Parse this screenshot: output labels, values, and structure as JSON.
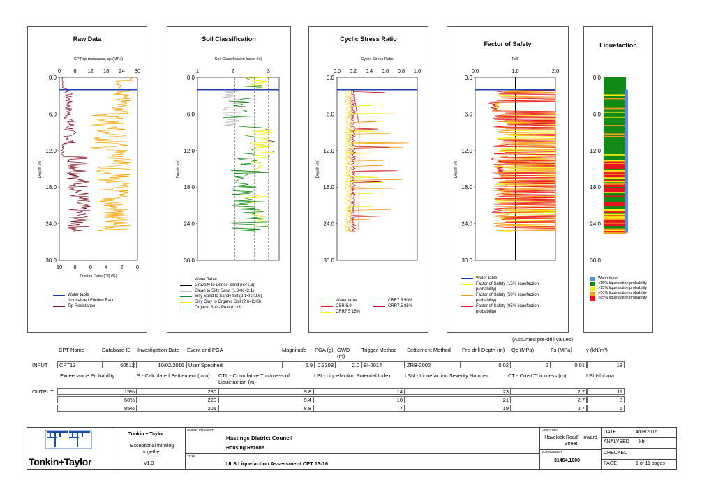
{
  "colors": {
    "water_table": "#1f3fb8",
    "tip": "#7a1020",
    "friction": "#f5a300",
    "red": "#e8141e",
    "yellow": "#f5ee10",
    "orange": "#f59a1a",
    "green": "#138a17",
    "gray": "#bbbbbb"
  },
  "panels": {
    "raw": {
      "title": "Raw Data",
      "top_axis_label": "CPT tip resistance, qc (MPa)",
      "bottom_axis_label": "Friction Ratio (Rf) (%)",
      "top_ticks": [
        "0",
        "6",
        "12",
        "18",
        "24",
        "30"
      ],
      "bottom_ticks": [
        "10",
        "8",
        "6",
        "4",
        "2",
        "0"
      ],
      "legend": [
        "Water table",
        "Normalized Friction Ratio",
        "Tip Resistance"
      ]
    },
    "soil": {
      "title": "Soil Classification",
      "top_axis_label": "Soil Classification Index (Ic)",
      "top_ticks": [
        "1",
        "2",
        "3"
      ],
      "legend": [
        "Water Table",
        "Gravelly to Dense Sand (Ic<1.3)",
        "Clean to Silty Sand (1.3<Ic<2.1)",
        "Silty Sand to Sandy Silt (2.1<Ic<2.6)",
        "Silty Clay to Organic Soil (2.6<Ic<3)",
        "Organic Soil - Peat (Ic>3)"
      ]
    },
    "csr": {
      "title": "Cyclic Stress Ratio",
      "top_axis_label": "Cyclic Stress Ratio",
      "top_ticks": [
        "0.0",
        "0.2",
        "0.4",
        "0.6",
        "0.8",
        "1.0"
      ],
      "legend_left": [
        "Water table",
        "CSR 6.9",
        "CRR7.5 15%"
      ],
      "legend_right": [
        "CRR7.5 50%",
        "CRR7.5 85%"
      ]
    },
    "fos": {
      "title": "Factor of Safety",
      "top_axis_label": "FoS",
      "top_ticks": [
        "0.0",
        "1.0",
        "2.0"
      ],
      "legend": [
        "Water table",
        "Factor of Safety (15% liquefaction probability)",
        "Factor of Safety (50% liquefaction probability)",
        "Factor of Safety (85% liquefaction probability)"
      ]
    },
    "liq": {
      "title": "Liquefaction",
      "legend": [
        "Water table",
        "<15% liquefaction probability",
        ">15% liquefaction probability",
        ">50% liquefaction probability",
        ">85% liquefaction probability"
      ]
    }
  },
  "depth_ticks": [
    "0.0",
    "6.0",
    "12.0",
    "18.0",
    "24.0",
    "30.0"
  ],
  "depth_label": "Depth (m)",
  "chart_data": [
    {
      "type": "line",
      "title": "Raw Data",
      "ylabel": "Depth (m)",
      "ylim": [
        0,
        30
      ],
      "series": [
        {
          "name": "Water table",
          "depth": [
            2
          ]
        },
        {
          "name": "Tip Resistance",
          "xlabel": "CPT tip resistance, qc (MPa)",
          "xlim": [
            0,
            30
          ]
        },
        {
          "name": "Normalized Friction Ratio",
          "xlabel": "Friction Ratio (Rf) (%)",
          "xlim": [
            10,
            0
          ]
        }
      ]
    },
    {
      "type": "line",
      "title": "Soil Classification",
      "xlabel": "Soil Classification Index (Ic)",
      "xlim": [
        1,
        3.3
      ],
      "ylim": [
        0,
        30
      ],
      "water_table_depth": 2
    },
    {
      "type": "line",
      "title": "Cyclic Stress Ratio",
      "xlabel": "Cyclic Stress Ratio",
      "xlim": [
        0,
        1
      ],
      "ylim": [
        0,
        30
      ],
      "water_table_depth": 2
    },
    {
      "type": "line",
      "title": "Factor of Safety",
      "xlabel": "FoS",
      "xlim": [
        0,
        2
      ],
      "ylim": [
        0,
        30
      ],
      "water_table_depth": 2
    },
    {
      "type": "heatmap",
      "title": "Liquefaction",
      "ylim": [
        0,
        30
      ],
      "water_table_depth": 2
    }
  ],
  "assumed_label": "(Assumed pre-drill values)",
  "input_headers": [
    "CPT Name",
    "Database ID",
    "Investigation Date",
    "Event and PGA",
    "Magnitude",
    "PGA (g)",
    "GWD (m)",
    "Trigger Method",
    "Settlement Method",
    "Pre-drill Depth (m)",
    "Qc (MPa)",
    "Fs (MPa)",
    "γ (kN/m³)"
  ],
  "input_row": {
    "label": "INPUT",
    "cpt": "CPT13",
    "db": "60512",
    "date": "10/02/2016",
    "event": "User Specified",
    "mag": "6.9",
    "pga": "0.3308",
    "gwd": "2.0",
    "trigger": "BI-2014",
    "settle": "ZRB-2002",
    "depth": "0.02",
    "qc": "2",
    "fs": "0.01",
    "gamma": "18"
  },
  "output_headers": [
    "Exceedance Probability",
    "S - Calculated Settlement (mm)",
    "CTL - Cumulative Thickness of Liquefaction (m)",
    "LPI - Liquefaction Potential Index",
    "LSN - Liquefaction Severity Number",
    "CT - Crust Thickness (m)",
    "LPI Ishihara"
  ],
  "output_label": "OUTPUT",
  "output_rows": [
    [
      "15%",
      "230",
      "9.8",
      "14",
      "23",
      "2.7",
      "11"
    ],
    [
      "50%",
      "220",
      "9.4",
      "10",
      "21",
      "2.7",
      "8"
    ],
    [
      "85%",
      "201",
      "8.8",
      "7",
      "19",
      "2.7",
      "5"
    ]
  ],
  "footer": {
    "logo_text": "Tonkin+Taylor",
    "company": "Tonkin + Taylor",
    "tagline": "Exceptional thinking together",
    "version": "V1.3",
    "client_label": "CLIENT  PROJECT",
    "client": "Hastings District Council",
    "project": "Housing Rezone",
    "title_label": "TITLE",
    "title": "ULS Liquefaction Assessment CPT 13-16",
    "location_label": "LOCATION",
    "location": "Havelock Road/ Howard Street",
    "job_label": "JOB NUMBER",
    "job": "31464.1000",
    "date_label": "DATE",
    "date": "4/03/2016",
    "analysed_label": "ANALYSED",
    "analysed": "khl",
    "checked_label": "CHECKED",
    "checked": "",
    "page_label": "PAGE",
    "page": "1 of 11 pages"
  }
}
